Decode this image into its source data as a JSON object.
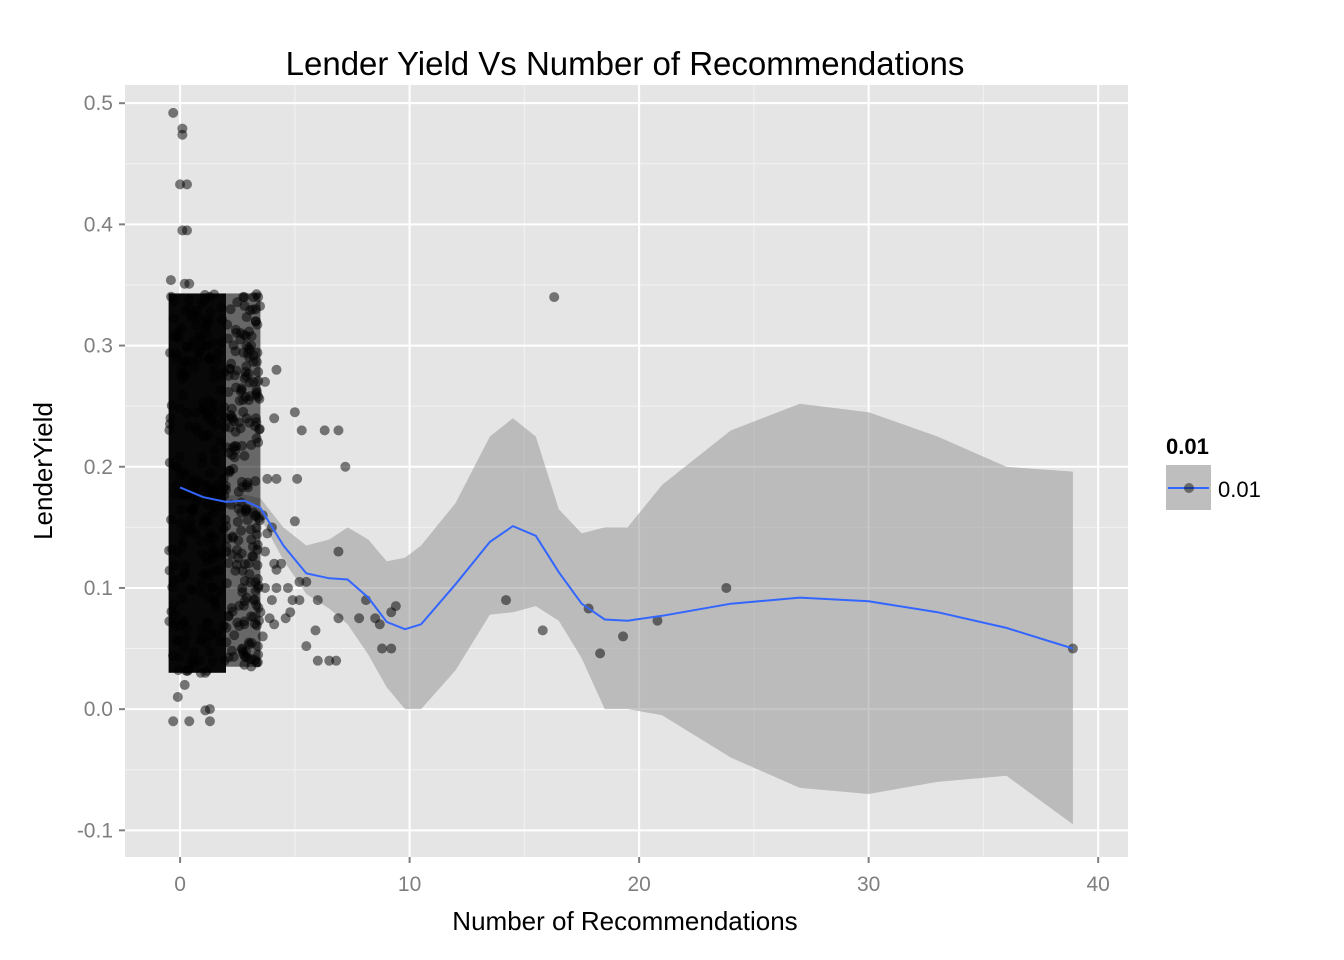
{
  "chart_data": {
    "type": "scatter",
    "title": "Lender Yield Vs Number of Recommendations",
    "xlabel": "Number of Recommendations",
    "ylabel": "LenderYield",
    "xlim": [
      -2.4,
      41.3
    ],
    "ylim": [
      -0.122,
      0.515
    ],
    "x_ticks": [
      0,
      10,
      20,
      30,
      40
    ],
    "x_tick_labels": [
      "0",
      "10",
      "20",
      "30",
      "40"
    ],
    "y_ticks": [
      -0.1,
      0.0,
      0.1,
      0.2,
      0.3,
      0.4,
      0.5
    ],
    "y_tick_labels": [
      "-0.1",
      "0.0",
      "0.1",
      "0.2",
      "0.3",
      "0.4",
      "0.5"
    ],
    "grid": true,
    "legend": {
      "title": "0.01",
      "position": "right",
      "entries": [
        {
          "label": "0.01",
          "line_color": "#3366FF",
          "fill_color": "#BEBEBE"
        }
      ]
    },
    "colors": {
      "panel_background": "#E5E5E5",
      "grid_major": "#FFFFFF",
      "grid_minor": "#F2F2F2",
      "points": "#000000",
      "smooth_line": "#3366FF",
      "confidence_band": "#999999"
    },
    "series": [
      {
        "type": "scatter",
        "points": [
          [
            -0.3,
            0.492
          ],
          [
            0.1,
            0.479
          ],
          [
            0.1,
            0.474
          ],
          [
            0.0,
            0.433
          ],
          [
            0.3,
            0.433
          ],
          [
            0.1,
            0.395
          ],
          [
            0.3,
            0.395
          ],
          [
            -0.4,
            0.354
          ],
          [
            0.2,
            0.351
          ],
          [
            0.4,
            0.351
          ],
          [
            16.3,
            0.34
          ],
          [
            3.2,
            0.34
          ],
          [
            3.4,
            0.34
          ],
          [
            2.8,
            0.34
          ],
          [
            3.3,
            0.33
          ],
          [
            3.3,
            0.32
          ],
          [
            2.2,
            0.33
          ],
          [
            3.1,
            0.3
          ],
          [
            3.3,
            0.32
          ],
          [
            2.9,
            0.3
          ],
          [
            4.2,
            0.28
          ],
          [
            3.7,
            0.27
          ],
          [
            3.2,
            0.27
          ],
          [
            3.0,
            0.255
          ],
          [
            2.9,
            0.24
          ],
          [
            3.3,
            0.24
          ],
          [
            3.4,
            0.22
          ],
          [
            5.0,
            0.245
          ],
          [
            4.1,
            0.24
          ],
          [
            5.3,
            0.23
          ],
          [
            6.3,
            0.23
          ],
          [
            6.9,
            0.23
          ],
          [
            7.2,
            0.2
          ],
          [
            3.8,
            0.19
          ],
          [
            4.2,
            0.19
          ],
          [
            5.1,
            0.19
          ],
          [
            3.3,
            0.16
          ],
          [
            3.6,
            0.16
          ],
          [
            4.0,
            0.15
          ],
          [
            3.8,
            0.145
          ],
          [
            5.0,
            0.155
          ],
          [
            3.1,
            0.14
          ],
          [
            3.7,
            0.13
          ],
          [
            4.1,
            0.12
          ],
          [
            4.2,
            0.115
          ],
          [
            4.4,
            0.12
          ],
          [
            4.2,
            0.1
          ],
          [
            3.7,
            0.1
          ],
          [
            3.4,
            0.1
          ],
          [
            3.2,
            0.09
          ],
          [
            4.0,
            0.09
          ],
          [
            5.5,
            0.105
          ],
          [
            5.2,
            0.105
          ],
          [
            4.7,
            0.1
          ],
          [
            4.9,
            0.09
          ],
          [
            3.5,
            0.08
          ],
          [
            3.9,
            0.075
          ],
          [
            4.6,
            0.075
          ],
          [
            4.8,
            0.08
          ],
          [
            5.2,
            0.09
          ],
          [
            6.0,
            0.09
          ],
          [
            2.8,
            0.07
          ],
          [
            3.6,
            0.06
          ],
          [
            4.1,
            0.07
          ],
          [
            3.0,
            0.055
          ],
          [
            5.5,
            0.052
          ],
          [
            5.9,
            0.065
          ],
          [
            6.0,
            0.04
          ],
          [
            6.5,
            0.04
          ],
          [
            6.8,
            0.04
          ],
          [
            3.4,
            0.045
          ],
          [
            2.7,
            0.05
          ],
          [
            6.9,
            0.13
          ],
          [
            6.9,
            0.075
          ],
          [
            8.1,
            0.09
          ],
          [
            7.8,
            0.075
          ],
          [
            8.5,
            0.075
          ],
          [
            8.7,
            0.07
          ],
          [
            8.8,
            0.05
          ],
          [
            9.2,
            0.08
          ],
          [
            9.2,
            0.05
          ],
          [
            9.4,
            0.085
          ],
          [
            14.2,
            0.09
          ],
          [
            15.8,
            0.065
          ],
          [
            17.8,
            0.083
          ],
          [
            18.3,
            0.046
          ],
          [
            19.3,
            0.06
          ],
          [
            20.8,
            0.073
          ],
          [
            23.8,
            0.1
          ],
          [
            38.9,
            0.05
          ],
          [
            1.3,
            0.0
          ],
          [
            1.1,
            -0.001
          ],
          [
            1.3,
            -0.01
          ],
          [
            0.4,
            -0.01
          ],
          [
            -0.3,
            -0.01
          ],
          [
            0.2,
            0.02
          ],
          [
            0.5,
            0.04
          ],
          [
            0.9,
            0.03
          ],
          [
            1.1,
            0.03
          ],
          [
            -0.1,
            0.01
          ]
        ],
        "dense_regions": [
          {
            "x": [
              -0.5,
              2.0
            ],
            "y": [
              0.03,
              0.343
            ],
            "density": "very high"
          },
          {
            "x": [
              2.0,
              3.5
            ],
            "y": [
              0.035,
              0.343
            ],
            "density": "medium"
          }
        ]
      },
      {
        "type": "smooth",
        "name": "0.01",
        "x": [
          0.0,
          1.0,
          2.0,
          2.8,
          3.5,
          4.5,
          5.5,
          6.5,
          7.3,
          8.2,
          9.0,
          9.8,
          10.5,
          12.0,
          13.5,
          14.5,
          15.5,
          16.5,
          17.5,
          18.5,
          19.5,
          21.0,
          24.0,
          27.0,
          30.0,
          33.0,
          36.0,
          38.9
        ],
        "y": [
          0.183,
          0.175,
          0.171,
          0.172,
          0.166,
          0.135,
          0.112,
          0.108,
          0.107,
          0.092,
          0.072,
          0.066,
          0.07,
          0.103,
          0.138,
          0.151,
          0.143,
          0.113,
          0.087,
          0.074,
          0.073,
          0.077,
          0.087,
          0.092,
          0.089,
          0.08,
          0.067,
          0.05
        ],
        "ci_low": [
          0.174,
          0.168,
          0.167,
          0.167,
          0.158,
          0.123,
          0.095,
          0.083,
          0.07,
          0.045,
          0.018,
          0.0,
          0.0,
          0.032,
          0.078,
          0.08,
          0.085,
          0.073,
          0.042,
          0.0,
          0.0,
          -0.005,
          -0.04,
          -0.065,
          -0.07,
          -0.06,
          -0.055,
          -0.095
        ],
        "ci_high": [
          0.192,
          0.182,
          0.176,
          0.177,
          0.174,
          0.15,
          0.135,
          0.14,
          0.15,
          0.14,
          0.122,
          0.125,
          0.135,
          0.17,
          0.225,
          0.24,
          0.225,
          0.165,
          0.145,
          0.15,
          0.15,
          0.185,
          0.23,
          0.252,
          0.245,
          0.225,
          0.2,
          0.196
        ]
      }
    ]
  }
}
